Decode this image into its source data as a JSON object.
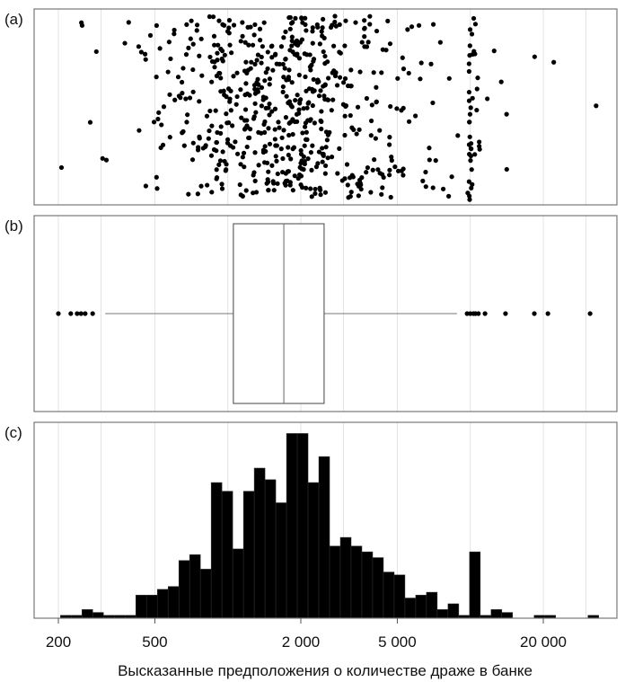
{
  "chart_data": {
    "type": "histogram",
    "xlabel": "Высказанные предположения о количестве драже в банке",
    "x_scale": "log",
    "xlim": [
      180,
      36000
    ],
    "x_ticks": [
      200,
      500,
      2000,
      5000,
      20000
    ],
    "x_tick_labels": [
      "200",
      "500",
      "2 000",
      "5 000",
      "20 000"
    ],
    "gridlines": [
      200,
      300,
      500,
      1000,
      2000,
      3000,
      5000,
      10000,
      20000,
      30000
    ],
    "panels": [
      {
        "label": "(a)",
        "type": "strip",
        "description_of_data": "jittered individual guesses"
      },
      {
        "label": "(b)",
        "type": "box",
        "box": {
          "whisker_low": 312,
          "q1": 1054,
          "median": 1702,
          "q3": 2495,
          "whisker_high": 8810
        },
        "outliers": [
          200,
          225,
          239,
          248,
          258,
          277,
          9700,
          10000,
          10300,
          10500,
          10800,
          11500,
          13970,
          18370,
          20900,
          31200
        ]
      },
      {
        "label": "(c)",
        "type": "histogram",
        "bin_start": 204,
        "bin_log10_width": 0.0444,
        "ylim": [
          0,
          66
        ],
        "counts": [
          1,
          1,
          3,
          2,
          1,
          1,
          1,
          8,
          8,
          10,
          11,
          20,
          22,
          17,
          47,
          44,
          24,
          44,
          52,
          48,
          40,
          64,
          64,
          47,
          56,
          25,
          28,
          25,
          23,
          21,
          16,
          15,
          7,
          8,
          9,
          3,
          5,
          1,
          23,
          1,
          3,
          2,
          0,
          0,
          1,
          1,
          0,
          0,
          0,
          1
        ]
      }
    ]
  }
}
